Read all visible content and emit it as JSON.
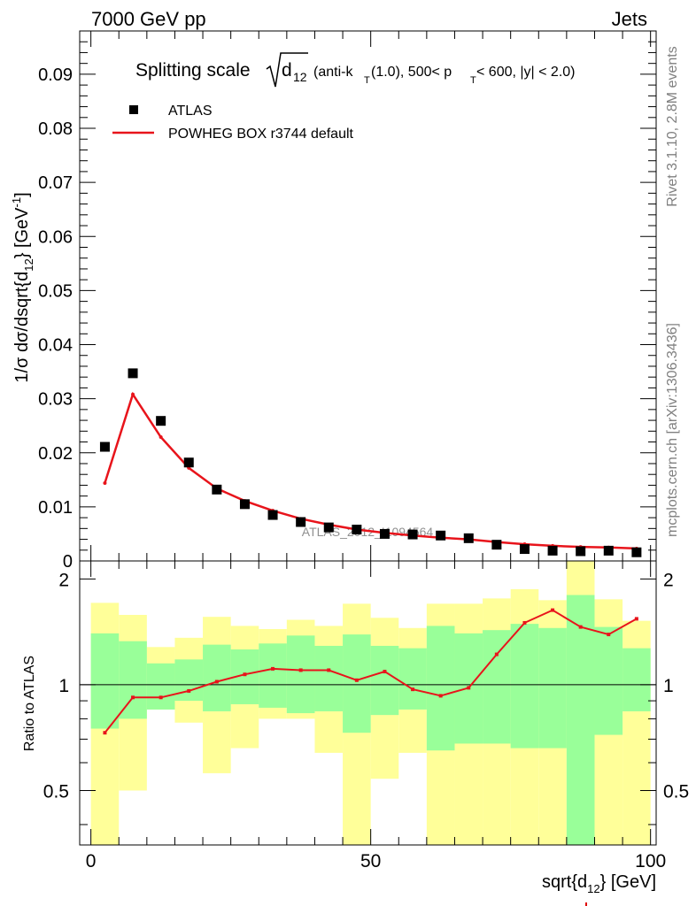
{
  "header": {
    "left": "7000 GeV pp",
    "right": "Jets"
  },
  "side_labels": {
    "rivet": "Rivet 3.1.10,  2.8M events",
    "mcplots": "mcplots.cern.ch [arXiv:1306.3436]"
  },
  "watermark": "ATLAS_2012_I1094564",
  "colors": {
    "data": "#000000",
    "mc": "#e8141b",
    "band_inner": "#99ff99",
    "band_outer": "#ffff99",
    "footer_tag": "#e00000"
  },
  "chart_data": [
    {
      "type": "scatter",
      "panel": "main",
      "title": {
        "prefix": "Splitting scale",
        "d_base": "d",
        "d_sub": "12",
        "paren_start": "(anti-k",
        "k_sub": "T",
        "paren_mid": "(1.0), 500< p",
        "p_sub": "T",
        "paren_end": " < 600, |y| < 2.0)"
      },
      "ylabel": "1/σ dσ/dsqrt{d",
      "ylabel_sub": "12",
      "ylabel_tail": "} [GeV",
      "ylabel_sup": "-1",
      "ylabel_end": "]",
      "xlim": [
        -2,
        101
      ],
      "ylim": [
        0,
        0.098
      ],
      "yticks": [
        0,
        0.01,
        0.02,
        0.03,
        0.04,
        0.05,
        0.06,
        0.07,
        0.08,
        0.09
      ],
      "ytick_labels": [
        "0",
        "0.01",
        "0.02",
        "0.03",
        "0.04",
        "0.05",
        "0.06",
        "0.07",
        "0.08",
        "0.09"
      ],
      "legend": [
        {
          "label": "ATLAS",
          "style": "marker"
        },
        {
          "label": "POWHEG BOX r3744 default",
          "style": "line"
        }
      ],
      "legend_position": "top-left",
      "x": [
        2.5,
        7.5,
        12.5,
        17.5,
        22.5,
        27.5,
        32.5,
        37.5,
        42.5,
        47.5,
        52.5,
        57.5,
        62.5,
        67.5,
        72.5,
        77.5,
        82.5,
        87.5,
        92.5,
        97.5
      ],
      "series": [
        {
          "name": "ATLAS",
          "values": [
            0.0211,
            0.0347,
            0.0259,
            0.0182,
            0.0132,
            0.0105,
            0.0085,
            0.0072,
            0.0062,
            0.0058,
            0.005,
            0.0049,
            0.0047,
            0.0042,
            0.003,
            0.0022,
            0.0019,
            0.0018,
            0.0019,
            0.0016
          ]
        },
        {
          "name": "POWHEG BOX r3744 default",
          "values": [
            0.0144,
            0.0308,
            0.0229,
            0.0172,
            0.0134,
            0.0111,
            0.0093,
            0.0078,
            0.0067,
            0.0058,
            0.0052,
            0.0047,
            0.0043,
            0.004,
            0.0035,
            0.0031,
            0.0028,
            0.0026,
            0.0025,
            0.0023
          ]
        }
      ]
    },
    {
      "type": "line",
      "panel": "ratio",
      "ylabel": "Ratio to ATLAS",
      "xlabel": "sqrt{d",
      "xlabel_sub": "12",
      "xlabel_tail": "} [GeV]",
      "xlim": [
        -2,
        101
      ],
      "ylim": [
        0.35,
        2.25
      ],
      "xticks": [
        0,
        50,
        100
      ],
      "xtick_labels": [
        "0",
        "50",
        "100"
      ],
      "yticks": [
        0.5,
        1,
        2
      ],
      "ytick_labels": [
        "0.5",
        "1",
        "2"
      ],
      "bin_edges": [
        0,
        5,
        10,
        15,
        20,
        25,
        30,
        35,
        40,
        45,
        50,
        55,
        60,
        65,
        70,
        75,
        80,
        85,
        90,
        95,
        100
      ],
      "band_inner": {
        "lower": [
          0.75,
          0.8,
          0.85,
          0.9,
          0.84,
          0.88,
          0.86,
          0.83,
          0.84,
          0.73,
          0.82,
          0.85,
          0.65,
          0.68,
          0.68,
          0.66,
          0.66,
          0.3,
          0.72,
          0.84
        ],
        "upper": [
          1.4,
          1.33,
          1.15,
          1.18,
          1.3,
          1.26,
          1.31,
          1.38,
          1.29,
          1.39,
          1.29,
          1.27,
          1.47,
          1.4,
          1.43,
          1.49,
          1.45,
          1.8,
          1.46,
          1.27
        ]
      },
      "band_outer": {
        "lower": [
          0.3,
          0.5,
          0.85,
          0.78,
          0.56,
          0.66,
          0.8,
          0.8,
          0.64,
          0.3,
          0.54,
          0.64,
          0.3,
          0.3,
          0.3,
          0.3,
          0.3,
          0.3,
          0.3,
          0.3
        ],
        "upper": [
          1.71,
          1.58,
          1.28,
          1.36,
          1.56,
          1.47,
          1.44,
          1.53,
          1.47,
          1.7,
          1.55,
          1.45,
          1.7,
          1.7,
          1.76,
          1.87,
          1.74,
          2.4,
          1.75,
          1.52
        ]
      },
      "series": [
        {
          "name": "POWHEG BOX r3744 default / ATLAS",
          "x": [
            2.5,
            7.5,
            12.5,
            17.5,
            22.5,
            27.5,
            32.5,
            37.5,
            42.5,
            47.5,
            52.5,
            57.5,
            62.5,
            67.5,
            72.5,
            77.5,
            82.5,
            87.5,
            92.5,
            97.5
          ],
          "values": [
            0.73,
            0.92,
            0.92,
            0.96,
            1.02,
            1.07,
            1.11,
            1.1,
            1.1,
            1.03,
            1.09,
            0.97,
            0.93,
            0.98,
            1.22,
            1.5,
            1.63,
            1.46,
            1.39,
            1.54
          ]
        }
      ]
    }
  ]
}
